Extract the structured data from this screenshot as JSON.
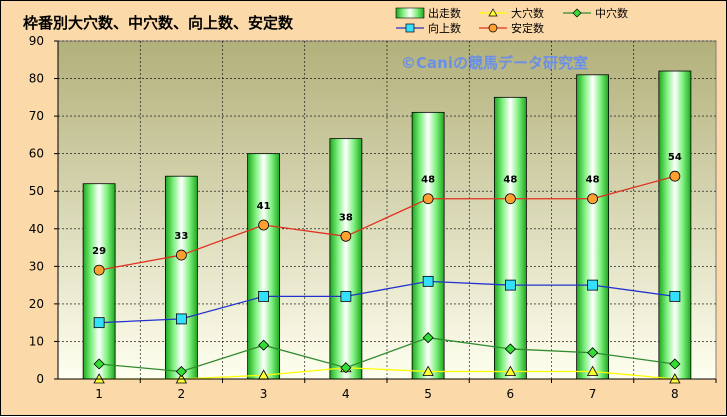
{
  "chart_data": {
    "type": "bar",
    "title": "枠番別大穴数、中穴数、向上数、安定数",
    "watermark": "©Caniの競馬データ研究室",
    "categories": [
      "1",
      "2",
      "3",
      "4",
      "5",
      "6",
      "7",
      "8"
    ],
    "ylim": [
      0,
      90
    ],
    "yticks": [
      0,
      10,
      20,
      30,
      40,
      50,
      60,
      70,
      80,
      90
    ],
    "grid": true,
    "legend_position": "top-right",
    "series": [
      {
        "name": "出走数",
        "type": "bar",
        "color": "#33cc33",
        "values": [
          52,
          54,
          60,
          64,
          71,
          75,
          81,
          82
        ]
      },
      {
        "name": "大穴数",
        "type": "line",
        "marker": "triangle",
        "color": "#ffff00",
        "values": [
          0,
          0,
          1,
          3,
          2,
          2,
          2,
          0
        ]
      },
      {
        "name": "中穴数",
        "type": "line",
        "marker": "diamond",
        "color": "#2e8b2e",
        "values": [
          4,
          2,
          9,
          3,
          11,
          8,
          7,
          4
        ]
      },
      {
        "name": "向上数",
        "type": "line",
        "marker": "square",
        "color": "#2233cc",
        "values": [
          15,
          16,
          22,
          22,
          26,
          25,
          25,
          22
        ]
      },
      {
        "name": "安定数",
        "type": "line",
        "marker": "circle",
        "color": "#e03020",
        "values": [
          29,
          33,
          41,
          38,
          48,
          48,
          48,
          54
        ]
      }
    ],
    "data_labels": {
      "series": "安定数",
      "values": [
        "29",
        "33",
        "41",
        "38",
        "48",
        "48",
        "48",
        "54"
      ]
    }
  }
}
